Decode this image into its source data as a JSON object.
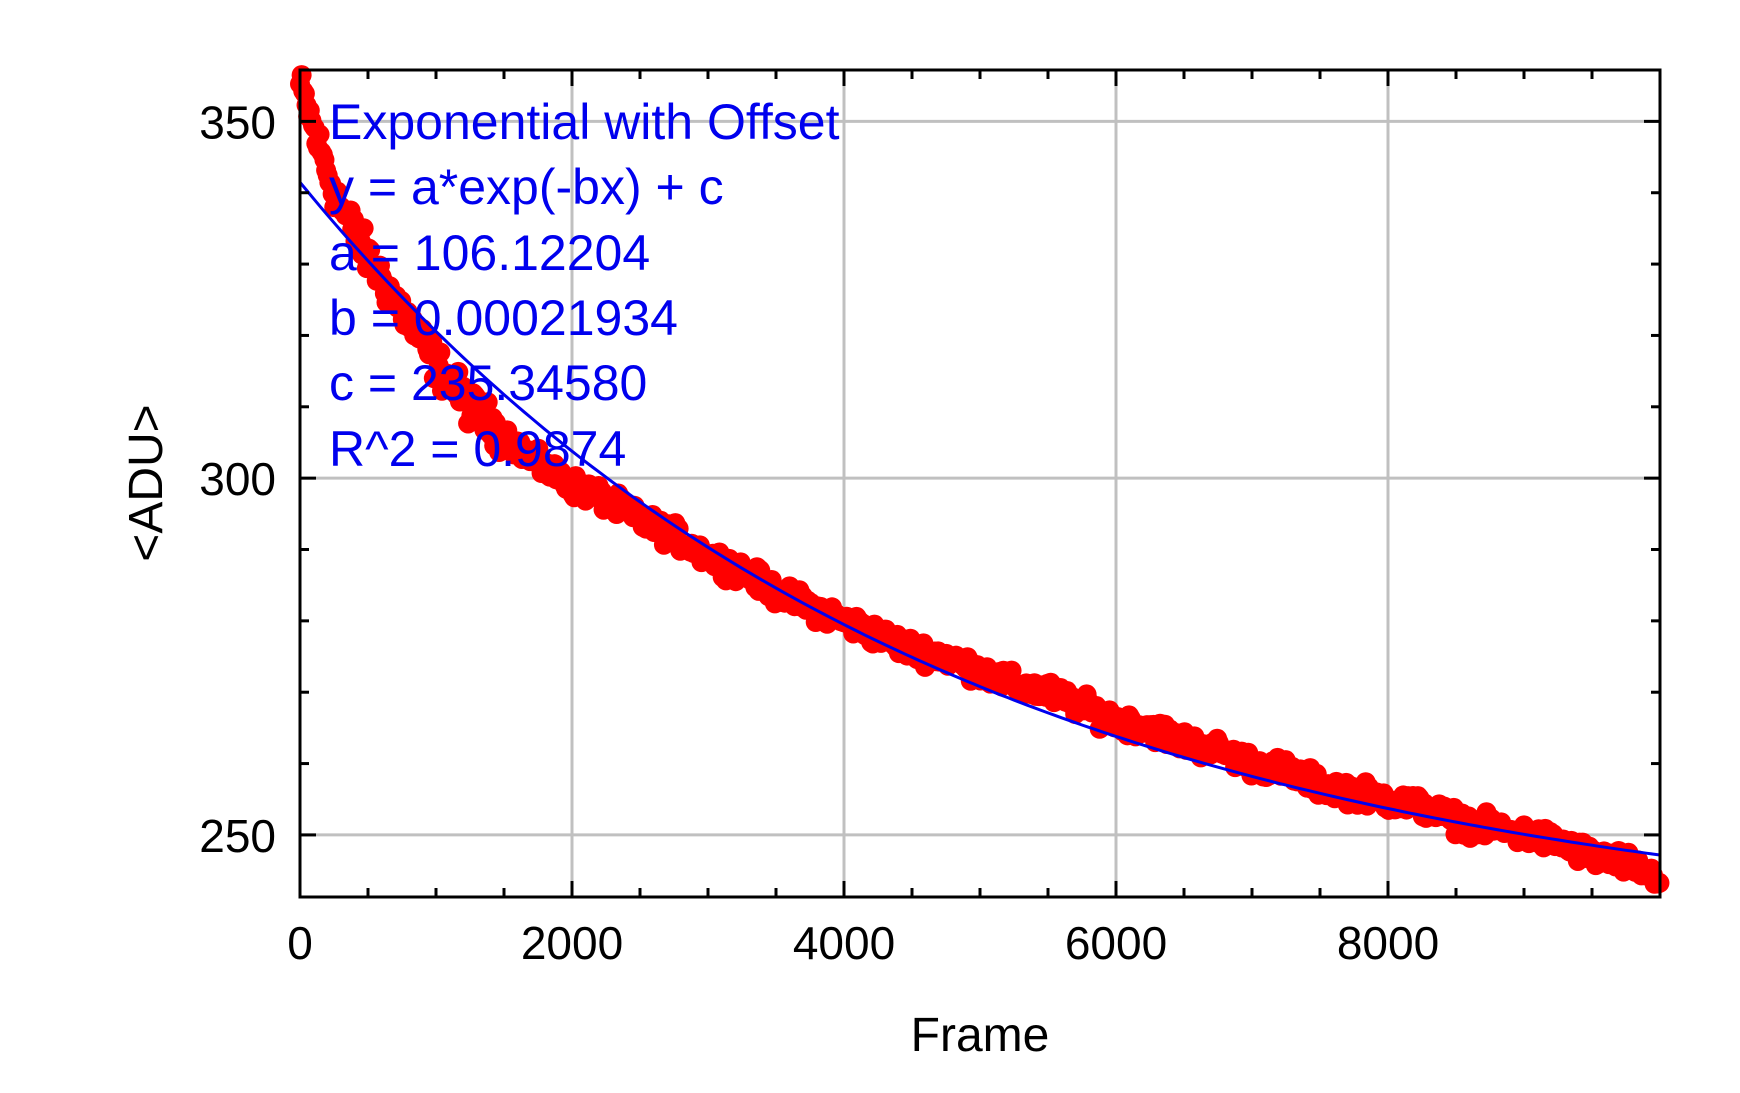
{
  "chart_data": {
    "type": "scatter",
    "title": "",
    "xlabel": "Frame",
    "ylabel": "<ADU>",
    "xlim": [
      0,
      10000
    ],
    "ylim": [
      241.3,
      357.2
    ],
    "xticks": [
      0,
      2000,
      4000,
      6000,
      8000
    ],
    "xtick_labels": [
      "0",
      "2000",
      "4000",
      "6000",
      "8000"
    ],
    "yticks": [
      250,
      300,
      350
    ],
    "ytick_labels": [
      "250",
      "300",
      "350"
    ],
    "x_minor_step": 500,
    "y_minor_step": 10,
    "grid": true,
    "colors": {
      "data": "#ff0000",
      "fit": "#0000ee",
      "grid": "#c0c0c0",
      "axes": "#000000",
      "annotation": "#0000ee"
    },
    "series": [
      {
        "kind": "scatter",
        "x": [
          0,
          100,
          200,
          300,
          500,
          700,
          1000,
          1250,
          1500,
          1750,
          2000,
          2250,
          2500,
          2750,
          3000,
          3250,
          3500,
          3750,
          4000,
          4250,
          4500,
          4750,
          5000,
          5250,
          5500,
          5750,
          6000,
          6250,
          6500,
          6750,
          7000,
          7250,
          7500,
          7750,
          8000,
          8250,
          8500,
          8750,
          9000,
          9250,
          9500,
          9750,
          10000
        ],
        "y": [
          355,
          349,
          343,
          338,
          331,
          325,
          316,
          310,
          306,
          302,
          299,
          297,
          294,
          292,
          289,
          287,
          284,
          282,
          280,
          278,
          276,
          275,
          273,
          271,
          270,
          268,
          266,
          265,
          263,
          262,
          260,
          259,
          257,
          256,
          255,
          254,
          252,
          251,
          250,
          249,
          247,
          246,
          244
        ]
      },
      {
        "kind": "fit",
        "a": 106.12204,
        "b": 0.00021934,
        "c": 235.3458
      }
    ],
    "annotations": [
      "Exponential with Offset",
      "y = a*exp(-bx) + c",
      "a = 106.12204",
      "b = 0.00021934",
      "c = 235.34580",
      "R^2 = 0.9874"
    ]
  }
}
